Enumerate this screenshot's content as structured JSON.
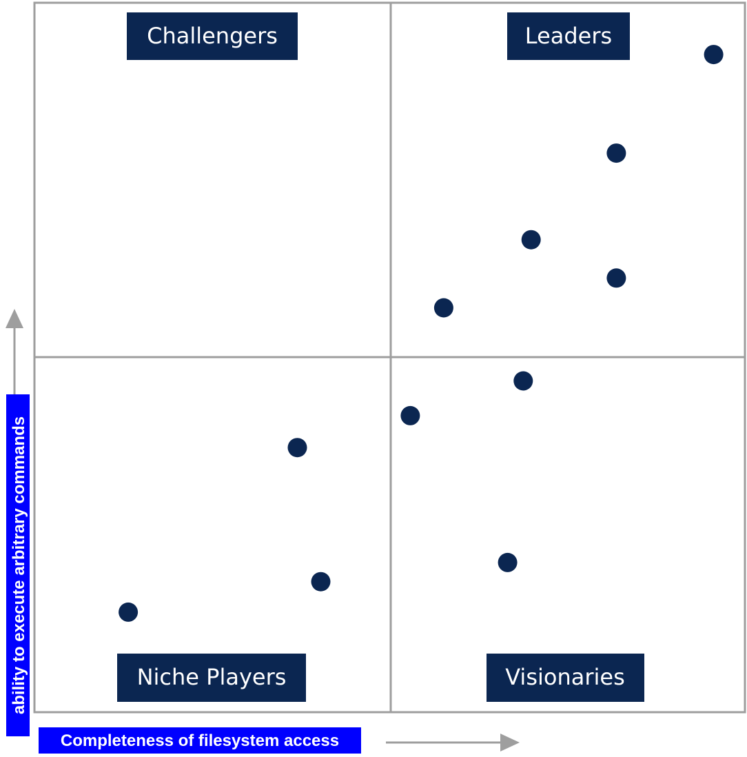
{
  "chart_data": {
    "type": "scatter",
    "title": "",
    "xlabel": "Completeness of filesystem access",
    "ylabel": "ability to execute arbitrary commands",
    "xlim": [
      0,
      100
    ],
    "ylim": [
      0,
      100
    ],
    "grid": false,
    "quadrants": {
      "top_left": "Challengers",
      "top_right": "Leaders",
      "bottom_left": "Niche Players",
      "bottom_right": "Visionaries"
    },
    "points": [
      {
        "x": 95.6,
        "y": 92.7
      },
      {
        "x": 81.9,
        "y": 78.8
      },
      {
        "x": 69.9,
        "y": 66.6
      },
      {
        "x": 81.9,
        "y": 61.2
      },
      {
        "x": 57.6,
        "y": 57.0
      },
      {
        "x": 68.8,
        "y": 46.7
      },
      {
        "x": 52.9,
        "y": 41.8
      },
      {
        "x": 37.0,
        "y": 37.3
      },
      {
        "x": 66.6,
        "y": 21.1
      },
      {
        "x": 40.3,
        "y": 18.4
      },
      {
        "x": 13.2,
        "y": 14.1
      }
    ]
  },
  "colors": {
    "marker": "#0b2651",
    "label_bg": "#0b2651",
    "label_text": "#ffffff",
    "frame": "#9e9e9e",
    "arrow": "#9e9e9e",
    "axis_label_bg": "#0000ff"
  }
}
